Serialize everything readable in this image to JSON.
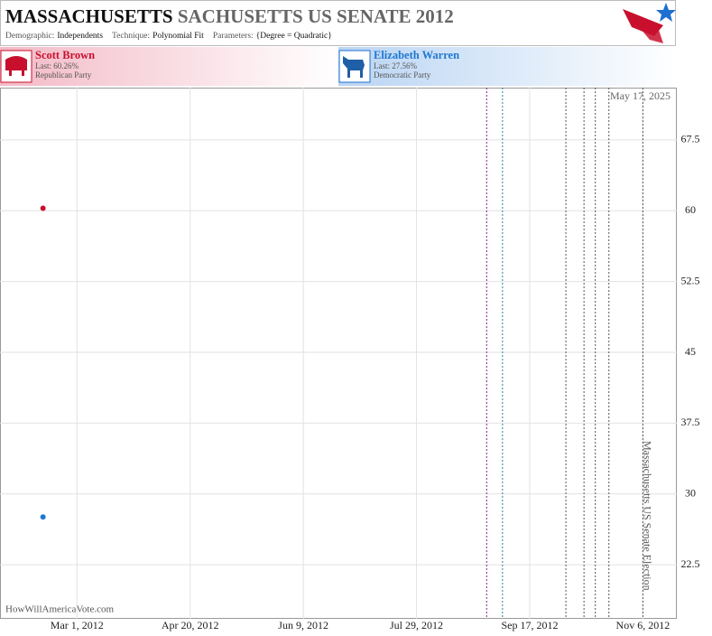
{
  "chart_data": {
    "type": "scatter",
    "title_parts": [
      "MASSACHUSETTS",
      "SACHUSETTS US SENATE 2012"
    ],
    "subtitle": [
      {
        "label": "Demographic:",
        "value": "Independents"
      },
      {
        "label": "Technique:",
        "value": "Polynomial Fit"
      },
      {
        "label": "Parameters:",
        "value": "{Degree = Quadratic}"
      }
    ],
    "date_stamp": "May 17, 2025",
    "source": "HowWillAmericaVote.com",
    "series": [
      {
        "name": "Scott Brown",
        "party": "Republican Party",
        "color": "#c8102e",
        "x": [
          "2012-02-15"
        ],
        "values": [
          60.26
        ],
        "value_labels": [
          "Last: 60.26%"
        ]
      },
      {
        "name": "Elizabeth Warren",
        "party": "Democratic Party",
        "color": "#1f78d1",
        "x": [
          "2012-02-15"
        ],
        "values": [
          27.56
        ],
        "value_labels": [
          "Last: 27.56%"
        ]
      }
    ],
    "events": [
      {
        "date": "2012-08-29",
        "color": "#8b1a9b"
      },
      {
        "date": "2012-09-05",
        "color": "#2a7fa0"
      },
      {
        "date": "2012-10-03",
        "color": "#555555"
      },
      {
        "date": "2012-10-11",
        "color": "#555555"
      },
      {
        "date": "2012-10-16",
        "color": "#555555"
      },
      {
        "date": "2012-10-22",
        "color": "#555555"
      },
      {
        "date": "2012-11-06",
        "color": "#555555",
        "label": "Massachusetts US Senate Election"
      }
    ],
    "xlim": [
      "2012-01-27",
      "2012-11-21"
    ],
    "xticks": [
      {
        "value": "2012-03-01",
        "label": "Mar 1, 2012"
      },
      {
        "value": "2012-04-20",
        "label": "Apr 20, 2012"
      },
      {
        "value": "2012-06-09",
        "label": "Jun 9, 2012"
      },
      {
        "value": "2012-07-29",
        "label": "Jul 29, 2012"
      },
      {
        "value": "2012-09-17",
        "label": "Sep 17, 2012"
      },
      {
        "value": "2012-11-06",
        "label": "Nov 6, 2012"
      }
    ],
    "ylim": [
      16.77,
      73.04
    ],
    "yticks": [
      22.5,
      30,
      37.5,
      45,
      52.5,
      60,
      67.5
    ],
    "grid": true
  }
}
